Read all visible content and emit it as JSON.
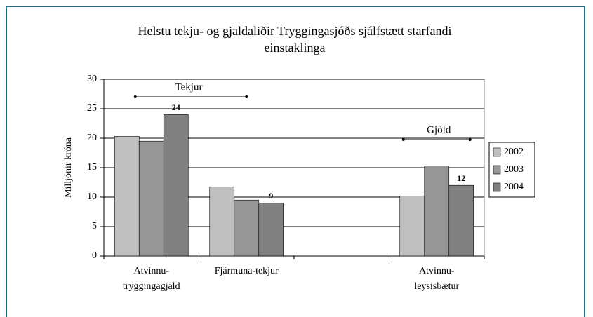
{
  "chart_data": {
    "type": "bar",
    "title": "Helstu tekju- og gjaldaliðir Tryggingasjóðs sjálfstætt starfandi einstaklinga",
    "ylabel": "Milljónir króna",
    "categories": [
      "Atvinnu-\ntryggingagjald",
      "Fjármuna-tekjur",
      null,
      "Atvinnu-\nleysisbætur"
    ],
    "series": [
      {
        "name": "2002",
        "color": "#c0c0c0",
        "values": [
          20.3,
          11.7,
          null,
          10.2
        ]
      },
      {
        "name": "2003",
        "color": "#969696",
        "values": [
          19.5,
          9.5,
          null,
          15.3
        ]
      },
      {
        "name": "2004",
        "color": "#808080",
        "values": [
          24,
          9,
          null,
          12
        ],
        "show_values": true
      }
    ],
    "annotations": [
      {
        "text": "Tekjur",
        "from": 0,
        "to": 1
      },
      {
        "text": "Gjöld",
        "from": 3,
        "to": 3
      }
    ],
    "ylim": [
      0,
      30
    ],
    "yticks": [
      0,
      5,
      10,
      15,
      20,
      25,
      30
    ],
    "grid": true,
    "legend": "right"
  }
}
